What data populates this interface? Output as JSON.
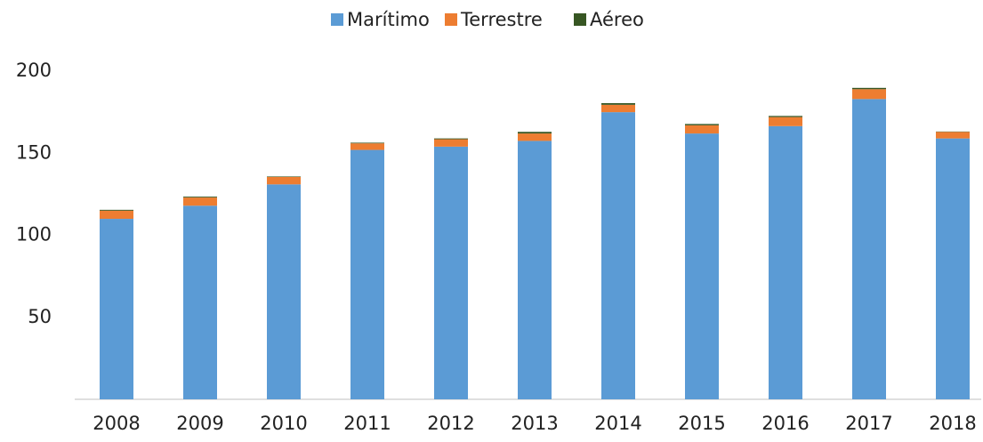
{
  "chart_data": {
    "type": "stacked_bar",
    "categories": [
      "2008",
      "2009",
      "2010",
      "2011",
      "2012",
      "2013",
      "2014",
      "2015",
      "2016",
      "2017",
      "2018"
    ],
    "series": [
      {
        "name": "Marítimo",
        "color": "#5b9bd5",
        "values": [
          110,
          118,
          131,
          152,
          154,
          157.5,
          175,
          162,
          166.5,
          183,
          159
        ]
      },
      {
        "name": "Terrestre",
        "color": "#ed7d31",
        "values": [
          5,
          5,
          4.5,
          4,
          4.5,
          4.5,
          4.5,
          5,
          5.5,
          6,
          4
        ]
      },
      {
        "name": "Aéreo",
        "color": "#375623",
        "values": [
          0.5,
          0.5,
          0.3,
          0.4,
          0.5,
          1,
          1,
          0.8,
          0.7,
          0.8,
          0.2
        ]
      }
    ],
    "ylim": [
      0,
      200
    ],
    "yticks": [
      50,
      100,
      150,
      200
    ],
    "grid": false
  }
}
